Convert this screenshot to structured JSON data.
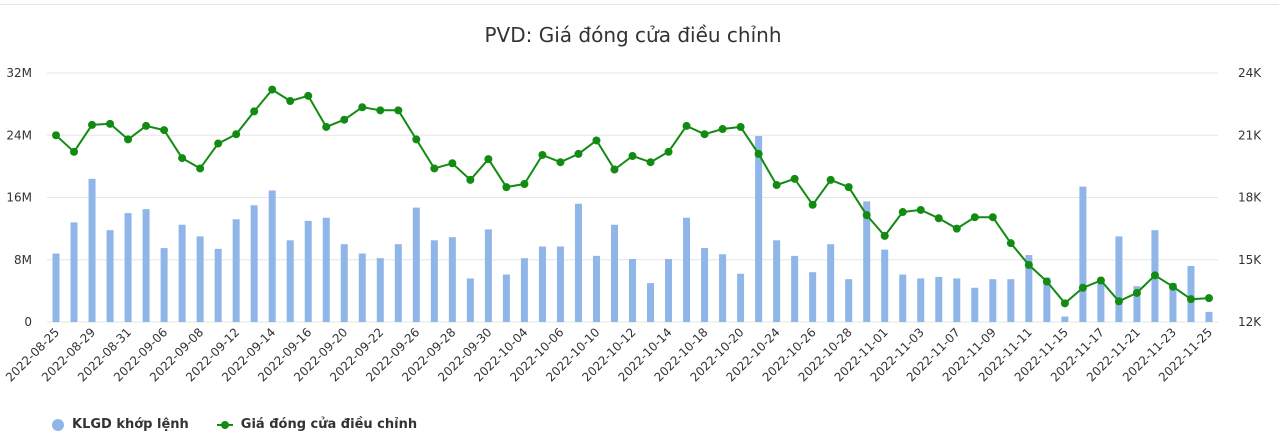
{
  "chart_data": {
    "type": "bar+line",
    "title": "PVD: Giá đóng cửa điều chỉnh",
    "y_left": {
      "ticks": [
        "0",
        "8M",
        "16M",
        "24M",
        "32M"
      ],
      "range": [
        0,
        32000000
      ]
    },
    "y_right": {
      "ticks": [
        "12K",
        "15K",
        "18K",
        "21K",
        "24K"
      ],
      "range": [
        12000,
        24000
      ]
    },
    "x_tick_labels": [
      "2022-08-25",
      "2022-08-29",
      "2022-08-31",
      "2022-09-06",
      "2022-09-08",
      "2022-09-12",
      "2022-09-14",
      "2022-09-16",
      "2022-09-20",
      "2022-09-22",
      "2022-09-26",
      "2022-09-28",
      "2022-09-30",
      "2022-10-04",
      "2022-10-06",
      "2022-10-10",
      "2022-10-12",
      "2022-10-14",
      "2022-10-18",
      "2022-10-20",
      "2022-10-24",
      "2022-10-26",
      "2022-10-28",
      "2022-11-01",
      "2022-11-03",
      "2022-11-07",
      "2022-11-09",
      "2022-11-11",
      "2022-11-15",
      "2022-11-17",
      "2022-11-21",
      "2022-11-23",
      "2022-11-25"
    ],
    "tick_every": 2,
    "series": [
      {
        "name": "KLGD khớp lệnh",
        "type": "bar",
        "color": "#90b5e8",
        "axis": "left",
        "values": [
          8800000,
          12800000,
          18400000,
          11800000,
          14000000,
          14500000,
          9500000,
          12500000,
          11000000,
          9400000,
          13200000,
          15000000,
          16900000,
          10500000,
          13000000,
          13400000,
          10000000,
          8800000,
          8200000,
          10000000,
          14700000,
          10500000,
          10900000,
          5600000,
          11900000,
          6100000,
          8200000,
          9700000,
          9700000,
          15200000,
          8500000,
          12500000,
          8100000,
          5000000,
          8100000,
          13400000,
          9500000,
          8700000,
          6200000,
          23900000,
          10500000,
          8500000,
          6400000,
          10000000,
          5500000,
          15500000,
          9300000,
          6100000,
          5600000,
          5800000,
          5600000,
          4400000,
          5500000,
          5500000,
          8600000,
          5700000,
          700000,
          17400000,
          5200000,
          11000000,
          4600000,
          11800000,
          5000000,
          7200000,
          1300000
        ]
      },
      {
        "name": "Giá đóng cửa điều chỉnh",
        "type": "line",
        "color": "#128b12",
        "axis": "right",
        "values": [
          21000,
          20200,
          21500,
          21550,
          20800,
          21450,
          21250,
          19900,
          19400,
          20600,
          21050,
          22150,
          23200,
          22650,
          22900,
          21400,
          21750,
          22350,
          22200,
          22200,
          20800,
          19400,
          19650,
          18850,
          19850,
          18500,
          18650,
          20050,
          19700,
          20100,
          20750,
          19350,
          20000,
          19700,
          20200,
          21450,
          21050,
          21300,
          21400,
          20100,
          18600,
          18900,
          17650,
          18850,
          18500,
          17150,
          16150,
          17300,
          17400,
          17000,
          16500,
          17050,
          17050,
          15800,
          14750,
          13950,
          12900,
          13650,
          14000,
          13000,
          13400,
          14250,
          13700,
          13100,
          13150
        ]
      }
    ],
    "legend_position": "bottom-left",
    "grid": true
  }
}
